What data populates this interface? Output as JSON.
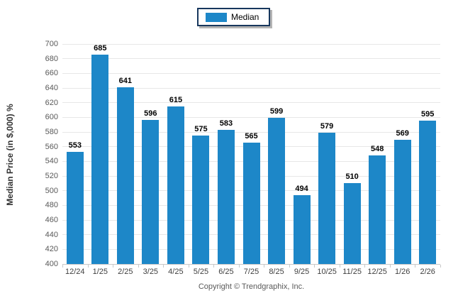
{
  "legend": {
    "label": "Median",
    "swatch_color": "#1d87c8",
    "border_color": "#17375d"
  },
  "chart_data": {
    "type": "bar",
    "title": "",
    "categories": [
      "12/24",
      "1/25",
      "2/25",
      "3/25",
      "4/25",
      "5/25",
      "6/25",
      "7/25",
      "8/25",
      "9/25",
      "10/25",
      "11/25",
      "12/25",
      "1/26",
      "2/26"
    ],
    "series": [
      {
        "name": "Median",
        "values": [
          553,
          685,
          641,
          596,
          615,
          575,
          583,
          565,
          599,
          494,
          579,
          510,
          548,
          569,
          595
        ]
      }
    ],
    "xlabel": "",
    "ylabel": "Median Price (in $,000) %",
    "ylim": [
      400,
      700
    ],
    "ytick_step": 20,
    "grid": "horizontal",
    "legend_position": "top-center",
    "value_labels": true,
    "bar_color": "#1d87c8"
  },
  "colors": {
    "bar": "#1d87c8",
    "gridline": "#e7e7e7",
    "axis_line": "#c8c8c8",
    "tick_text": "#595959",
    "value_text": "#000000",
    "legend_border": "#17375d"
  },
  "footer": {
    "copyright": "Copyright © Trendgraphix, Inc."
  }
}
